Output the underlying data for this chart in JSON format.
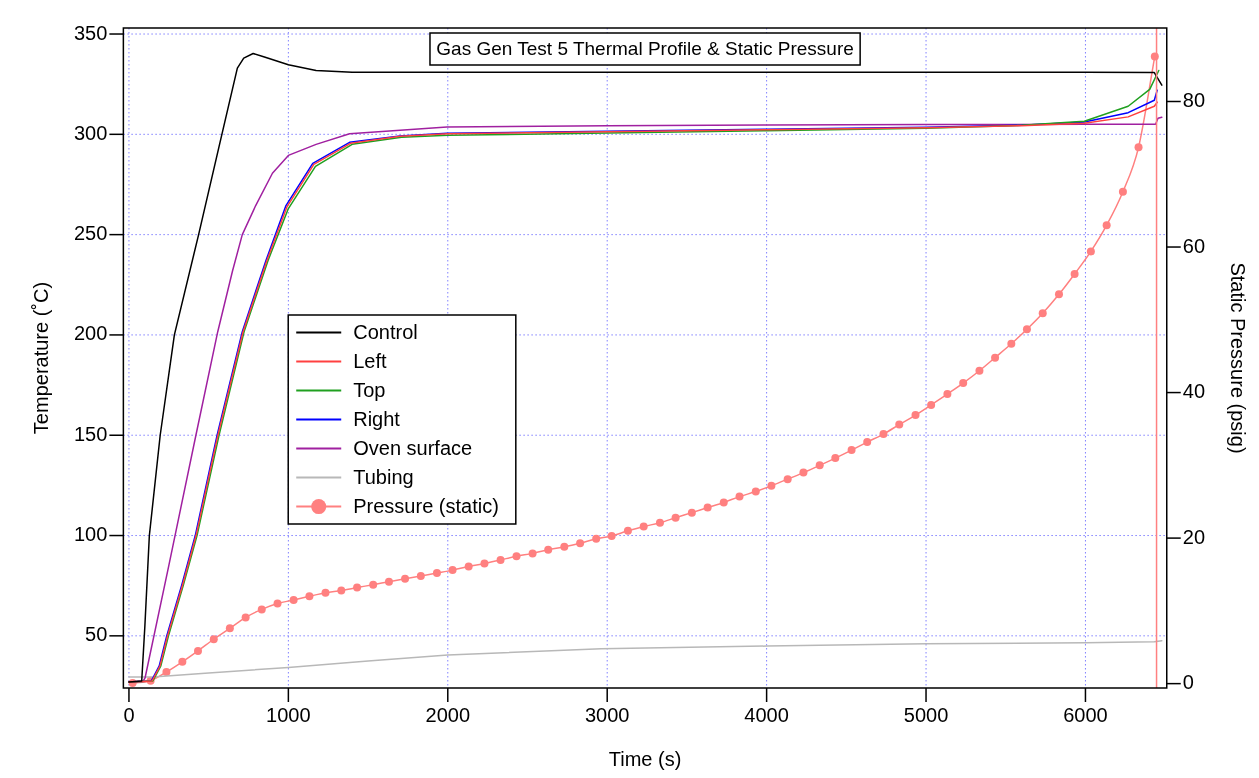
{
  "chart_data": {
    "type": "line",
    "title": "Gas Gen Test 5 Thermal Profile & Static Pressure",
    "xlabel": "Time (s)",
    "ylabel": "Temperature (˚C)",
    "y2label": "Static Pressure (psig)",
    "xlim": [
      -35,
      6510
    ],
    "xticks": [
      0,
      1000,
      2000,
      3000,
      4000,
      5000,
      6000
    ],
    "ylim": [
      24,
      353
    ],
    "yticks": [
      50,
      100,
      150,
      200,
      250,
      300,
      350
    ],
    "y2lim": [
      -0.6,
      90.1
    ],
    "y2ticks": [
      0,
      20,
      40,
      60,
      80
    ],
    "grid": true,
    "legend": "left",
    "line_style": "solid",
    "ref_lines": [
      {
        "axis": "x",
        "value": 6446,
        "color": "#ff8080"
      }
    ],
    "series": [
      {
        "name": "Control",
        "color": "#000000",
        "type": "line",
        "x": [
          0,
          80,
          100,
          128,
          196,
          285,
          437,
          564,
          680,
          720,
          779,
          850,
          1000,
          1174,
          1400,
          2000,
          3000,
          4000,
          5000,
          6000,
          6432,
          6479
        ],
        "values": [
          27,
          27.5,
          55,
          100,
          150,
          200,
          250,
          293.5,
          333,
          338,
          340.3,
          338.5,
          334.7,
          331.8,
          331,
          331,
          331,
          331,
          331,
          331,
          330.8,
          324.5
        ]
      },
      {
        "name": "Left",
        "color": "#ff4040",
        "type": "line",
        "x": [
          0,
          145,
          195,
          242,
          335,
          421,
          558,
          716,
          865,
          992,
          1160,
          1390,
          1700,
          2000,
          3000,
          4000,
          5000,
          5600,
          5993,
          6268,
          6432,
          6450
        ],
        "values": [
          27,
          27.5,
          35,
          50,
          75,
          100,
          150,
          201.6,
          237,
          264,
          285,
          295.5,
          299,
          300.3,
          301.3,
          302.3,
          303.3,
          304.3,
          305.5,
          308.7,
          314,
          316
        ]
      },
      {
        "name": "Top",
        "color": "#20a020",
        "type": "line",
        "x": [
          0,
          150,
          200,
          248,
          340,
          427,
          565,
          722,
          872,
          1000,
          1170,
          1400,
          1710,
          2000,
          3000,
          4000,
          5000,
          5600,
          5993,
          6268,
          6403,
          6460
        ],
        "values": [
          27,
          27.5,
          35,
          50,
          75,
          100,
          150,
          201.6,
          237,
          263,
          284,
          295,
          298.5,
          299.5,
          300.7,
          301.8,
          303,
          304.5,
          306.5,
          314,
          322.4,
          331.8
        ]
      },
      {
        "name": "Right",
        "color": "#0000ff",
        "type": "line",
        "x": [
          0,
          140,
          190,
          237,
          330,
          416,
          553,
          711,
          859,
          985,
          1153,
          1384,
          1700,
          1995,
          3000,
          4000,
          5000,
          5600,
          5993,
          6268,
          6432,
          6450
        ],
        "values": [
          27,
          27.5,
          35,
          50,
          75,
          100,
          150,
          201.6,
          237,
          264.5,
          285.5,
          296,
          299.2,
          300.5,
          301.5,
          302.5,
          303.5,
          304.5,
          306.1,
          310.8,
          317,
          322
        ]
      },
      {
        "name": "Oven surface",
        "color": "#a020a0",
        "type": "line",
        "x": [
          0,
          90,
          101,
          250,
          420,
          557,
          650,
          711,
          795,
          900,
          1000,
          1174,
          1384,
          1995,
          3000,
          4000,
          5000,
          6000,
          6440,
          6455,
          6479
        ],
        "values": [
          27,
          27.5,
          29,
          85,
          150,
          201.6,
          232,
          250,
          264.5,
          280.6,
          289.5,
          295,
          300.3,
          303.7,
          304.3,
          304.6,
          304.9,
          305,
          305,
          308,
          308.5
        ]
      },
      {
        "name": "Tubing",
        "color": "#b8b8b8",
        "type": "line",
        "x": [
          0,
          150,
          500,
          1000,
          1500,
          2000,
          2963,
          4000,
          5000,
          6000,
          6432,
          6479
        ],
        "values": [
          29.5,
          29.5,
          31.5,
          34.2,
          37.5,
          40.4,
          43.6,
          44.9,
          46,
          46.6,
          47,
          47.6
        ]
      },
      {
        "name": "Pressure (static)",
        "color": "#ff8080",
        "type": "line",
        "axis": "y2",
        "marker": "circle",
        "x": [
          23,
          136,
          235,
          335,
          433,
          532,
          633,
          732,
          833,
          932,
          1033,
          1132,
          1233,
          1332,
          1431,
          1532,
          1631,
          1732,
          1831,
          1932,
          2030,
          2131,
          2230,
          2331,
          2431,
          2532,
          2630,
          2731,
          2830,
          2931,
          3028,
          3130,
          3229,
          3331,
          3429,
          3531,
          3630,
          3731,
          3830,
          3932,
          4030,
          4132,
          4231,
          4333,
          4431,
          4533,
          4631,
          4733,
          4832,
          4934,
          5032,
          5134,
          5233,
          5335,
          5433,
          5535,
          5633,
          5732,
          5834,
          5932,
          6034,
          6133,
          6235,
          6333,
          6435
        ],
        "values": [
          0.1,
          0.4,
          1.6,
          3.0,
          4.5,
          6.1,
          7.6,
          9.1,
          10.2,
          11.0,
          11.5,
          12.0,
          12.5,
          12.8,
          13.2,
          13.6,
          14.0,
          14.4,
          14.8,
          15.2,
          15.6,
          16.1,
          16.5,
          17.0,
          17.5,
          17.9,
          18.4,
          18.8,
          19.3,
          19.9,
          20.3,
          21.0,
          21.6,
          22.1,
          22.8,
          23.5,
          24.2,
          24.9,
          25.7,
          26.4,
          27.2,
          28.1,
          29.0,
          30.0,
          31.0,
          32.1,
          33.2,
          34.3,
          35.6,
          36.9,
          38.3,
          39.8,
          41.3,
          43.0,
          44.8,
          46.7,
          48.7,
          50.9,
          53.5,
          56.3,
          59.4,
          63.0,
          67.6,
          73.7,
          86.2
        ]
      }
    ]
  }
}
